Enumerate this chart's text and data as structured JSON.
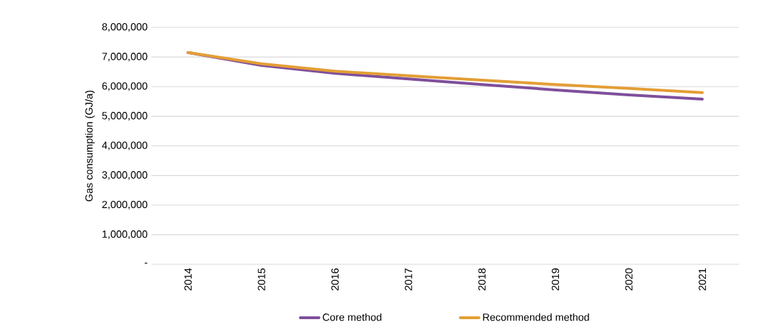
{
  "chart_data": {
    "type": "line",
    "ylabel": "Gas consumption (GJ/a)",
    "categories": [
      "2014",
      "2015",
      "2016",
      "2017",
      "2018",
      "2019",
      "2020",
      "2021"
    ],
    "series": [
      {
        "name": "Core method",
        "color": "#7f4f9b",
        "values": [
          7150000,
          6720000,
          6450000,
          6260000,
          6070000,
          5890000,
          5720000,
          5580000
        ]
      },
      {
        "name": "Recommended method",
        "color": "#e39e35",
        "values": [
          7150000,
          6770000,
          6520000,
          6370000,
          6220000,
          6070000,
          5940000,
          5800000
        ]
      }
    ],
    "ylim": [
      0,
      8000000
    ],
    "yticks": [
      {
        "value": 0,
        "label": "-"
      },
      {
        "value": 1000000,
        "label": "1,000,000"
      },
      {
        "value": 2000000,
        "label": "2,000,000"
      },
      {
        "value": 3000000,
        "label": "3,000,000"
      },
      {
        "value": 4000000,
        "label": "4,000,000"
      },
      {
        "value": 5000000,
        "label": "5,000,000"
      },
      {
        "value": 6000000,
        "label": "6,000,000"
      },
      {
        "value": 7000000,
        "label": "7,000,000"
      },
      {
        "value": 8000000,
        "label": "8,000,000"
      }
    ],
    "grid": "y",
    "legend": "bottom",
    "marker": "none",
    "line_style": "solid"
  }
}
